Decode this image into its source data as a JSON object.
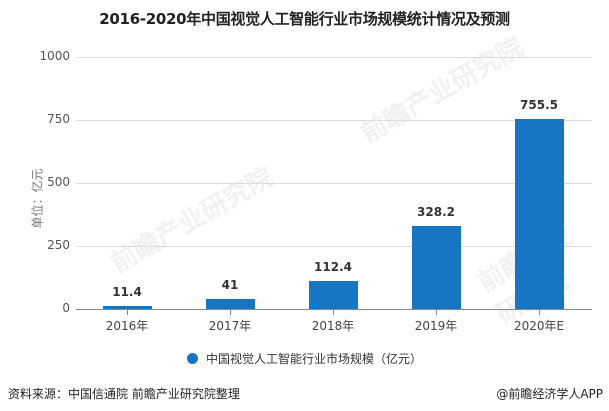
{
  "title": "2016-2020年中国视觉人工智能行业市场规模统计情况及预测",
  "y_axis_label": "单位：亿元",
  "y_ticks": [
    "0",
    "250",
    "500",
    "750",
    "1000"
  ],
  "legend": {
    "label": "中国视觉人工智能行业市场规模（亿元）",
    "color": "#1776c4"
  },
  "source": "资料来源：中国信通院 前瞻产业研究院整理",
  "credit": "@前瞻经济学人APP",
  "watermarks": [
    "前瞻产业研究院",
    "前瞻产业研究院",
    "前瞻产业研究院"
  ],
  "bars": [
    {
      "category": "2016年",
      "value": 11.4,
      "label": "11.4"
    },
    {
      "category": "2017年",
      "value": 41,
      "label": "41"
    },
    {
      "category": "2018年",
      "value": 112.4,
      "label": "112.4"
    },
    {
      "category": "2019年",
      "value": 328.2,
      "label": "328.2"
    },
    {
      "category": "2020年E",
      "value": 755.5,
      "label": "755.5"
    }
  ],
  "chart_data": {
    "type": "bar",
    "title": "2016-2020年中国视觉人工智能行业市场规模统计情况及预测",
    "categories": [
      "2016年",
      "2017年",
      "2018年",
      "2019年",
      "2020年E"
    ],
    "series": [
      {
        "name": "中国视觉人工智能行业市场规模（亿元）",
        "values": [
          11.4,
          41,
          112.4,
          328.2,
          755.5
        ],
        "color": "#1776c4"
      }
    ],
    "xlabel": "",
    "ylabel": "单位：亿元",
    "ylim": [
      0,
      1000
    ],
    "yticks": [
      0,
      250,
      500,
      750,
      1000
    ],
    "grid": true,
    "legend_position": "bottom",
    "data_labels": true,
    "source": "资料来源：中国信通院 前瞻产业研究院整理"
  }
}
